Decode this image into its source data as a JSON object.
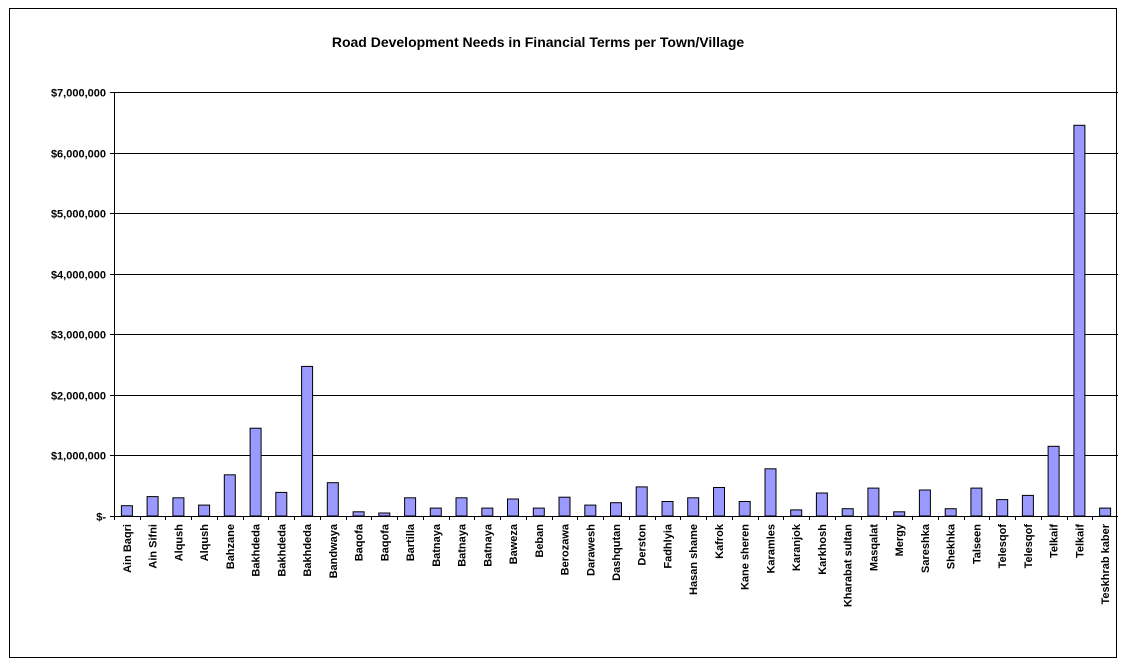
{
  "chart_data": {
    "type": "bar",
    "title": "Road Development Needs in Financial Terms per Town/Village",
    "xlabel": "",
    "ylabel": "",
    "ylim": [
      0,
      7000000
    ],
    "yticks": [
      0,
      1000000,
      2000000,
      3000000,
      4000000,
      5000000,
      6000000,
      7000000
    ],
    "ytick_labels": [
      "$-",
      "$1,000,000",
      "$2,000,000",
      "$3,000,000",
      "$4,000,000",
      "$5,000,000",
      "$6,000,000",
      "$7,000,000"
    ],
    "grid": true,
    "legend": "none",
    "bar_color": "#9999ff",
    "categories": [
      "Ain Baqri",
      "Ain Sifni",
      "Alqush",
      "Alqush",
      "Bahzane",
      "Bakhdeda",
      "Bakhdeda",
      "Bakhdeda",
      "Bandwaya",
      "Baqofa",
      "Baqofa",
      "Bartilla",
      "Batnaya",
      "Batnaya",
      "Batnaya",
      "Baweza",
      "Beban",
      "Berozawa",
      "Darawesh",
      "Dashqutan",
      "Derston",
      "Fadhlyia",
      "Hasan shame",
      "Kafrok",
      "Kane sheren",
      "Karamles",
      "Karanjok",
      "Karkhosh",
      "Kharabat sultan",
      "Masqalat",
      "Mergy",
      "Sareshka",
      "Shekhka",
      "Talseen",
      "Telesqof",
      "Telesqof",
      "Telkaif",
      "Telkaif",
      "Teskhrab kaber"
    ],
    "values": [
      170000,
      320000,
      300000,
      180000,
      680000,
      1450000,
      390000,
      2470000,
      550000,
      70000,
      50000,
      300000,
      130000,
      300000,
      130000,
      280000,
      130000,
      310000,
      180000,
      220000,
      480000,
      240000,
      300000,
      470000,
      240000,
      780000,
      100000,
      380000,
      120000,
      460000,
      70000,
      430000,
      120000,
      460000,
      270000,
      340000,
      1150000,
      6450000,
      130000
    ]
  }
}
